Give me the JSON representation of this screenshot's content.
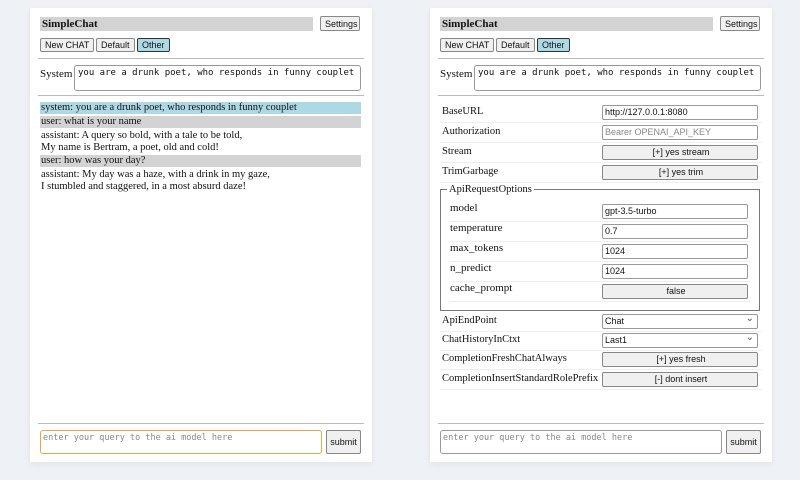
{
  "app": {
    "title": "SimpleChat",
    "settings_label": "Settings",
    "submit_label": "submit",
    "query_placeholder": "enter your query to the ai model here"
  },
  "session_buttons": [
    {
      "label": "New CHAT"
    },
    {
      "label": "Default"
    },
    {
      "label": "Other",
      "selected": true
    }
  ],
  "system": {
    "label": "System",
    "value": "you are a drunk poet, who responds in funny couplet"
  },
  "chat": [
    {
      "role": "system",
      "text": "system: you are a drunk poet, who responds in funny couplet"
    },
    {
      "role": "user",
      "text": "user: what is your name"
    },
    {
      "role": "assistant",
      "lines": [
        "assistant: A query so bold, with a tale to be told,",
        "My name is Bertram, a poet, old and cold!"
      ]
    },
    {
      "role": "user",
      "text": "user: how was your day?"
    },
    {
      "role": "assistant",
      "lines": [
        "assistant: My day was a haze, with a drink in my gaze,",
        "I stumbled and staggered, in a most absurd daze!"
      ]
    }
  ],
  "settings": {
    "baseurl": {
      "label": "BaseURL",
      "value": "http://127.0.0.1:8080"
    },
    "authorization": {
      "label": "Authorization",
      "placeholder": "Bearer OPENAI_API_KEY"
    },
    "stream": {
      "label": "Stream",
      "value": "[+] yes stream"
    },
    "trimgarbage": {
      "label": "TrimGarbage",
      "value": "[+] yes trim"
    },
    "apirequestoptions": {
      "legend": "ApiRequestOptions",
      "model": {
        "label": "model",
        "value": "gpt-3.5-turbo"
      },
      "temperature": {
        "label": "temperature",
        "value": "0.7"
      },
      "max_tokens": {
        "label": "max_tokens",
        "value": "1024"
      },
      "n_predict": {
        "label": "n_predict",
        "value": "1024"
      },
      "cache_prompt": {
        "label": "cache_prompt",
        "value": "false"
      }
    },
    "apiendpoint": {
      "label": "ApiEndPoint",
      "value": "Chat"
    },
    "chathistory": {
      "label": "ChatHistoryInCtxt",
      "value": "Last1"
    },
    "freshchat": {
      "label": "CompletionFreshChatAlways",
      "value": "[+] yes fresh"
    },
    "insertprefix": {
      "label": "CompletionInsertStandardRolePrefix",
      "value": "[-] dont insert"
    }
  },
  "colors": {
    "selected": "#add8e6",
    "user_bg": "#d3d3d3",
    "focus_border": "#e0a94a"
  }
}
